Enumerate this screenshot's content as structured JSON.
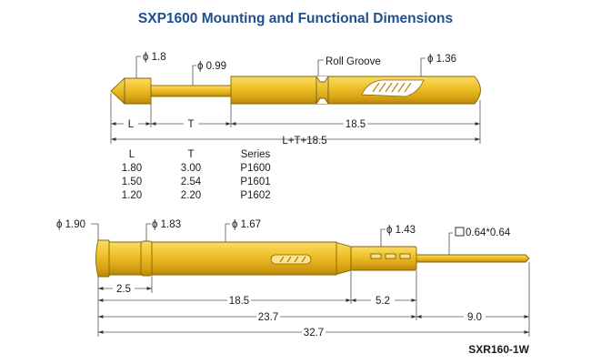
{
  "title": "SXP1600 Mounting and Functional Dimensions",
  "top_probe": {
    "head_dia": "ϕ 1.8",
    "plunger_dia": "ϕ 0.99",
    "roll_groove": "Roll Groove",
    "barrel_dia": "ϕ 1.36",
    "dim_L": "L",
    "dim_T": "T",
    "dim_barrel": "18.5",
    "dim_total": "L+T+18.5"
  },
  "table": {
    "headers": [
      "L",
      "T",
      "Series"
    ],
    "rows": [
      [
        "1.80",
        "3.00",
        "P1600"
      ],
      [
        "1.50",
        "2.54",
        "P1601"
      ],
      [
        "1.20",
        "2.20",
        "P1602"
      ]
    ]
  },
  "bottom_socket": {
    "dia_1": "ϕ 1.90",
    "dia_2": "ϕ 1.83",
    "dia_3": "ϕ 1.67",
    "dia_4": "ϕ 1.43",
    "pin_size": "0.64*0.64",
    "dim_2_5": "2.5",
    "dim_18_5": "18.5",
    "dim_5_2": "5.2",
    "dim_23_7": "23.7",
    "dim_9_0": "9.0",
    "dim_32_7": "32.7"
  },
  "model": "SXR160-1W",
  "colors": {
    "title": "#1f4f8f",
    "gold": "#e3b41b",
    "outline": "#8a6500"
  }
}
